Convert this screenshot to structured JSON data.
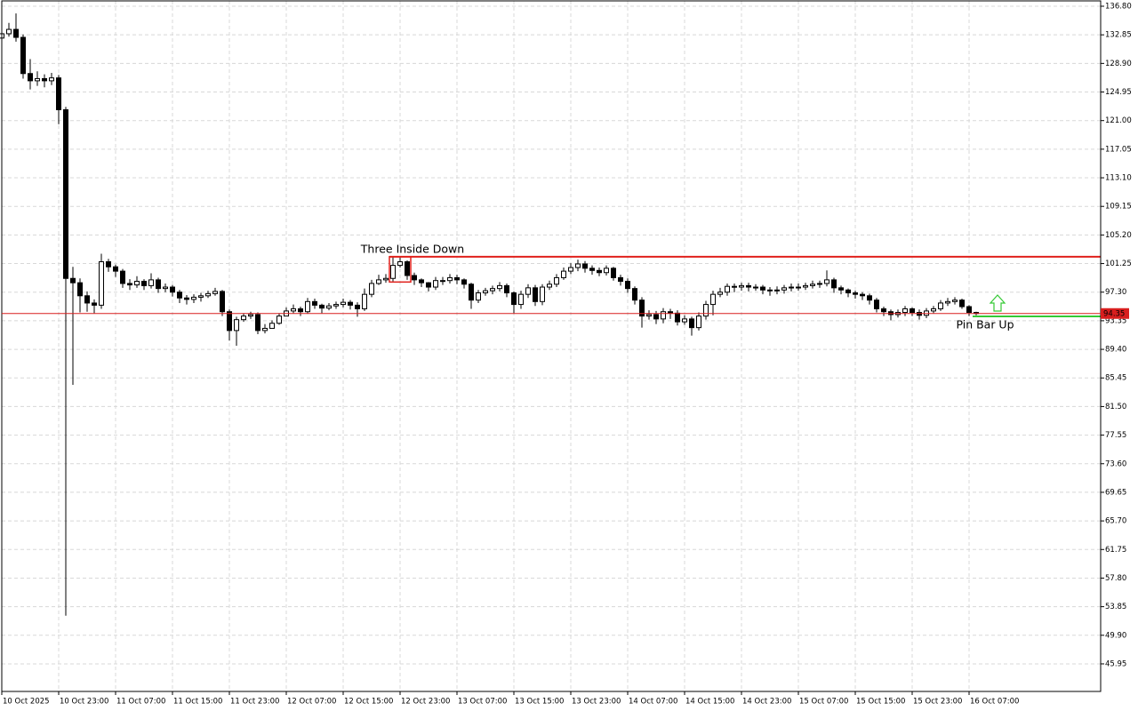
{
  "chart_data": {
    "type": "candlestick",
    "categories": [
      "10 Oct 2025",
      null,
      null,
      null,
      null,
      null,
      null,
      null,
      "10 Oct 23:00",
      null,
      null,
      null,
      null,
      null,
      null,
      null,
      "11 Oct 07:00",
      null,
      null,
      null,
      null,
      null,
      null,
      null,
      "11 Oct 15:00",
      null,
      null,
      null,
      null,
      null,
      null,
      null,
      "11 Oct 23:00",
      null,
      null,
      null,
      null,
      null,
      null,
      null,
      "12 Oct 07:00",
      null,
      null,
      null,
      null,
      null,
      null,
      null,
      "12 Oct 15:00",
      null,
      null,
      null,
      null,
      null,
      null,
      null,
      "12 Oct 23:00",
      null,
      null,
      null,
      null,
      null,
      null,
      null,
      "13 Oct 07:00",
      null,
      null,
      null,
      null,
      null,
      null,
      null,
      "13 Oct 15:00",
      null,
      null,
      null,
      null,
      null,
      null,
      null,
      "13 Oct 23:00",
      null,
      null,
      null,
      null,
      null,
      null,
      null,
      "14 Oct 07:00",
      null,
      null,
      null,
      null,
      null,
      null,
      null,
      "14 Oct 15:00",
      null,
      null,
      null,
      null,
      null,
      null,
      null,
      "14 Oct 23:00",
      null,
      null,
      null,
      null,
      null,
      null,
      null,
      "15 Oct 07:00",
      null,
      null,
      null,
      null,
      null,
      null,
      null,
      "15 Oct 15:00",
      null,
      null,
      null,
      null,
      null,
      null,
      null,
      "15 Oct 23:00",
      null,
      null,
      null,
      null,
      null,
      null,
      null,
      "16 Oct 07:00",
      null
    ],
    "open": [
      132.4,
      133.0,
      133.6,
      132.5,
      127.5,
      126.5,
      126.8,
      126.5,
      126.9,
      122.5,
      99.2,
      98.6,
      96.8,
      95.8,
      95.5,
      101.5,
      100.8,
      100.2,
      98.5,
      98.3,
      98.8,
      98.2,
      99.0,
      97.8,
      98.0,
      97.3,
      96.5,
      96.3,
      96.6,
      96.8,
      97.1,
      97.4,
      94.6,
      92.0,
      93.5,
      94.0,
      94.2,
      92.0,
      92.3,
      93.0,
      94.0,
      94.7,
      95.0,
      94.6,
      96.0,
      95.5,
      95.1,
      95.4,
      95.6,
      95.9,
      95.5,
      95.0,
      97.0,
      98.5,
      99.0,
      99.2,
      101.0,
      101.5,
      99.6,
      99.0,
      98.6,
      98.0,
      98.9,
      98.9,
      99.3,
      99.0,
      98.4,
      96.2,
      97.2,
      97.5,
      97.8,
      98.2,
      97.2,
      95.6,
      97.0,
      97.9,
      96.0,
      98.0,
      98.4,
      99.3,
      100.2,
      100.7,
      101.2,
      100.6,
      100.3,
      100.0,
      100.6,
      99.3,
      98.8,
      97.8,
      96.2,
      94.0,
      94.2,
      93.6,
      94.6,
      94.4,
      93.2,
      93.6,
      92.4,
      94.0,
      95.6,
      97.0,
      97.3,
      98.1,
      98.0,
      98.2,
      98.0,
      98.0,
      97.6,
      97.5,
      97.6,
      97.9,
      98.0,
      98.0,
      98.2,
      98.4,
      98.5,
      99.0,
      97.9,
      97.6,
      97.2,
      97.0,
      96.8,
      96.2,
      95.0,
      94.6,
      94.2,
      94.5,
      95.0,
      94.5,
      94.1,
      94.7,
      95.0,
      95.8,
      96.0,
      96.2,
      95.3,
      94.5
    ],
    "high": [
      133.8,
      134.5,
      135.8,
      132.9,
      129.5,
      127.8,
      127.4,
      127.6,
      127.3,
      122.9,
      100.8,
      99.2,
      97.4,
      96.3,
      102.6,
      101.9,
      101.1,
      100.5,
      99.1,
      99.5,
      99.1,
      99.9,
      99.3,
      98.5,
      98.3,
      97.6,
      96.9,
      97.0,
      97.2,
      97.5,
      97.9,
      97.6,
      94.9,
      93.9,
      94.4,
      94.6,
      94.5,
      92.9,
      93.4,
      94.4,
      95.2,
      95.6,
      95.3,
      96.5,
      96.4,
      95.7,
      95.8,
      96.0,
      96.4,
      96.2,
      95.9,
      97.8,
      99.0,
      99.7,
      99.8,
      102.3,
      102.2,
      101.7,
      100.0,
      99.2,
      98.7,
      99.4,
      99.4,
      99.8,
      99.7,
      99.2,
      98.6,
      97.6,
      97.9,
      98.2,
      98.7,
      98.5,
      97.4,
      97.5,
      98.4,
      98.3,
      98.4,
      98.9,
      99.8,
      100.7,
      101.3,
      101.8,
      101.6,
      101.0,
      100.7,
      101.0,
      100.8,
      99.7,
      99.2,
      98.1,
      96.6,
      94.8,
      94.7,
      95.1,
      95.0,
      94.8,
      94.1,
      93.9,
      94.5,
      96.1,
      97.5,
      97.9,
      98.5,
      98.5,
      98.6,
      98.6,
      98.4,
      98.3,
      98.0,
      98.1,
      98.3,
      98.5,
      98.5,
      98.6,
      98.9,
      98.9,
      100.3,
      99.3,
      98.2,
      97.8,
      97.5,
      97.3,
      97.1,
      96.5,
      95.3,
      94.9,
      94.9,
      95.4,
      95.2,
      94.9,
      95.1,
      95.4,
      96.2,
      96.5,
      96.6,
      96.4,
      95.5,
      94.6
    ],
    "low": [
      131.5,
      132.6,
      131.9,
      126.8,
      125.3,
      125.8,
      125.6,
      125.9,
      120.5,
      52.6,
      84.5,
      94.5,
      94.6,
      94.4,
      95.0,
      100.1,
      99.4,
      97.9,
      97.6,
      97.9,
      97.6,
      97.8,
      97.2,
      97.3,
      96.7,
      95.8,
      95.6,
      95.8,
      96.0,
      96.5,
      96.8,
      94.0,
      90.6,
      89.9,
      93.2,
      93.6,
      91.5,
      91.6,
      92.4,
      92.8,
      94.1,
      94.4,
      94.0,
      94.3,
      95.0,
      94.4,
      94.8,
      95.0,
      95.2,
      94.9,
      93.9,
      94.7,
      96.6,
      98.3,
      98.6,
      98.8,
      100.7,
      99.0,
      98.3,
      98.0,
      97.4,
      97.6,
      98.3,
      98.5,
      98.4,
      97.8,
      95.0,
      95.8,
      96.8,
      97.0,
      97.4,
      96.6,
      94.4,
      95.0,
      96.5,
      95.4,
      95.5,
      97.6,
      98.0,
      99.0,
      99.8,
      100.2,
      100.0,
      99.7,
      99.5,
      99.6,
      98.9,
      98.2,
      97.2,
      95.6,
      92.4,
      93.5,
      92.9,
      93.0,
      93.6,
      92.7,
      92.8,
      91.3,
      92.0,
      93.5,
      94.1,
      96.6,
      96.8,
      97.3,
      97.5,
      97.4,
      97.5,
      97.0,
      96.8,
      97.0,
      97.1,
      97.4,
      97.5,
      97.6,
      97.8,
      97.9,
      98.1,
      97.2,
      97.0,
      96.6,
      96.4,
      96.2,
      95.6,
      94.5,
      94.0,
      93.4,
      93.8,
      94.0,
      94.0,
      93.5,
      93.7,
      94.4,
      94.7,
      95.4,
      95.6,
      95.0,
      94.0,
      94.1
    ],
    "close": [
      133.0,
      133.6,
      132.5,
      127.5,
      126.5,
      126.8,
      126.5,
      126.9,
      122.5,
      99.2,
      98.6,
      96.8,
      95.8,
      95.5,
      101.5,
      100.8,
      100.2,
      98.5,
      98.3,
      98.8,
      98.2,
      99.0,
      97.8,
      98.0,
      97.3,
      96.5,
      96.3,
      96.6,
      96.8,
      97.1,
      97.4,
      94.6,
      92.0,
      93.5,
      94.0,
      94.2,
      92.0,
      92.3,
      93.0,
      94.0,
      94.7,
      95.0,
      94.6,
      96.0,
      95.5,
      95.1,
      95.4,
      95.6,
      95.9,
      95.5,
      95.0,
      97.0,
      98.5,
      99.0,
      99.2,
      101.0,
      101.5,
      99.6,
      99.0,
      98.6,
      98.0,
      98.9,
      98.9,
      99.3,
      99.0,
      98.4,
      96.2,
      97.2,
      97.5,
      97.8,
      98.2,
      97.2,
      95.6,
      97.0,
      97.9,
      96.0,
      98.0,
      98.4,
      99.3,
      100.2,
      100.7,
      101.2,
      100.6,
      100.3,
      100.0,
      100.6,
      99.3,
      98.8,
      97.8,
      96.2,
      94.0,
      94.2,
      93.6,
      94.6,
      94.4,
      93.2,
      93.6,
      92.4,
      94.0,
      95.6,
      97.0,
      97.3,
      98.1,
      98.0,
      98.2,
      98.0,
      98.0,
      97.6,
      97.5,
      97.6,
      97.9,
      98.0,
      98.0,
      98.2,
      98.4,
      98.5,
      99.0,
      97.9,
      97.6,
      97.2,
      97.0,
      96.8,
      96.2,
      95.0,
      94.6,
      94.2,
      94.5,
      95.0,
      94.5,
      94.1,
      94.7,
      95.0,
      95.8,
      96.0,
      96.2,
      95.3,
      94.5,
      94.35
    ],
    "ylim": [
      42.14,
      137.66
    ],
    "yticks": [
      {
        "value": 136.8,
        "label": "136.80"
      },
      132.85,
      {
        "value": 128.9,
        "label": "128.90"
      },
      124.95,
      {
        "value": 121,
        "label": "121.00"
      },
      117.05,
      {
        "value": 113.1,
        "label": "113.10"
      },
      109.15,
      {
        "value": 105.2,
        "label": "105.20"
      },
      101.25,
      {
        "value": 97.3,
        "label": "97.30"
      },
      93.35,
      {
        "value": 89.4,
        "label": "89.40"
      },
      85.45,
      {
        "value": 81.5,
        "label": "81.50"
      },
      77.55,
      {
        "value": 73.6,
        "label": "73.60"
      },
      69.65,
      {
        "value": 65.7,
        "label": "65.70"
      },
      61.75,
      {
        "value": 57.8,
        "label": "57.80"
      },
      53.85,
      {
        "value": 49.9,
        "label": "49.90"
      },
      45.95
    ],
    "grid": true,
    "price_line": 94.35,
    "price_color": "#d81e1e",
    "patterns": [
      {
        "name": "Three Inside Down",
        "color": "#e0201b",
        "level": 102.2,
        "low": 98.7,
        "candles": [
          55,
          57
        ]
      },
      {
        "name": "Pin Bar Up",
        "color": "#35c935",
        "level": 93.95,
        "candles": [
          137
        ]
      }
    ]
  }
}
